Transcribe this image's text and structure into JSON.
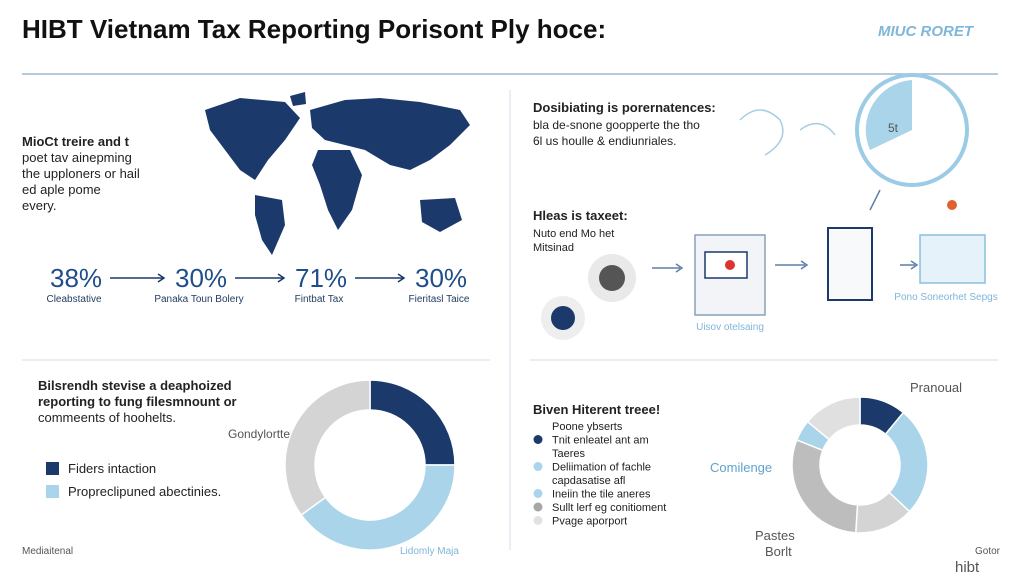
{
  "header": {
    "title": "HIBT Vietnam Tax Reporting Porisont Ply hoce:",
    "badge": "MIUC RORET"
  },
  "intro": {
    "lines": [
      "MioCt treire and t",
      "poet tav ainepming",
      "the upploners or hail",
      "ed aple pome",
      "every."
    ]
  },
  "stats": [
    {
      "value": "38%",
      "label": "Cleabstative"
    },
    {
      "value": "30%",
      "label": "Panaka Toun Bolery"
    },
    {
      "value": "71%",
      "label": "Fintbat Tax"
    },
    {
      "value": "30%",
      "label": "Fieritasl Taice"
    }
  ],
  "top_right": {
    "heading": "Dosibiating is porernatences:",
    "lines": [
      "bla de-snone goopperte the tho",
      "6l us houlle & endiunriales."
    ],
    "icon_label": "5t"
  },
  "flow": {
    "heading": "Hleas is taxeet:",
    "lines": [
      "Nuto end Mo het",
      "Mitsinad"
    ],
    "labels": [
      "Uisov otelsaing",
      "Pono Soneorhet Sepgs"
    ]
  },
  "bottom_left": {
    "lines": [
      "Bilsrendh stevise a deaphoized",
      "reporting to fung filesmnount or",
      "commeents of hoohelts."
    ],
    "legend": [
      {
        "text": "Fiders intaction",
        "color": "#1b3a6b"
      },
      {
        "text": "Propreclipuned abectinies.",
        "color": "#a9d4ea"
      }
    ],
    "callout": "Gondylortter",
    "footer": "Lidomly Maja",
    "corner": "Mediaitenal"
  },
  "bottom_right": {
    "heading": "Biven Hiterent treee!",
    "legend": [
      {
        "text": "Poone ybserts"
      },
      {
        "text": "Tnit enleatel ant am",
        "color": "#1b3a6b"
      },
      {
        "text": "Taeres"
      },
      {
        "text": "Deliimation of fachle",
        "color": "#a9d4ea"
      },
      {
        "text": "capdasatise afl"
      },
      {
        "text": "Ineiin the tile aneres",
        "color": "#a9d4ea"
      },
      {
        "text": "Sullt lerf eg conitioment",
        "color": "#a7a7a7"
      },
      {
        "text": "Pvage aporport",
        "color": "#e2e2e2"
      }
    ],
    "callouts": [
      "Pranoual",
      "Comilenge",
      "Pastes",
      "Borlt"
    ],
    "corner": [
      "Gotor",
      "hibt"
    ]
  },
  "chart_data": [
    {
      "type": "pie",
      "values": [
        25,
        40,
        35
      ],
      "colors": [
        "#1b3a6b",
        "#a9d4ea",
        "#d4d4d4"
      ]
    },
    {
      "type": "pie",
      "values": [
        11,
        26,
        14,
        30,
        5,
        14
      ],
      "colors": [
        "#1b3a6b",
        "#a9d4ea",
        "#d4d4d4",
        "#bdbdbd",
        "#a9d4ea",
        "#e0e0e0"
      ]
    }
  ]
}
